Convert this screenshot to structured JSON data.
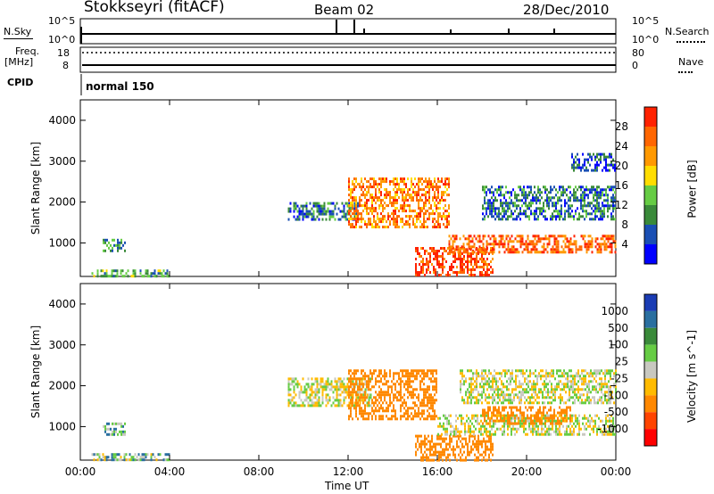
{
  "header": {
    "title": "Stokkseyri (fitACF)",
    "beam": "Beam 02",
    "date": "28/Dec/2010"
  },
  "nsky": {
    "label": "N.Sky",
    "tick_top": "10^5",
    "tick_bottom": "10^0",
    "right_label": "N.Search",
    "right_tick_top": "10^5",
    "right_tick_bottom": "10^0"
  },
  "freq": {
    "label_line1": "Freq.",
    "label_line2": "[MHz]",
    "tick_top": "18",
    "tick_bottom": "8",
    "right_label": "Nave",
    "right_tick_top": "80",
    "right_tick_bottom": "0"
  },
  "cpid": {
    "label": "CPID",
    "value": "normal 150"
  },
  "colors": {
    "power_scale": [
      "#0000ff",
      "#1a4fb4",
      "#3a8a3a",
      "#66cc44",
      "#ffdd00",
      "#ff9900",
      "#ff6600",
      "#ff2200"
    ],
    "velocity_scale": [
      "#1a3cb4",
      "#2a6fa0",
      "#3a8a3a",
      "#66cc44",
      "#c8c8c0",
      "#ffbb00",
      "#ff8800",
      "#ff4400",
      "#ff0000"
    ],
    "ground_scatter": "#c8c8c0"
  },
  "chart_data": [
    {
      "type": "heatmap",
      "title": "",
      "xlabel": "Time UT",
      "ylabel": "Slant Range [km]",
      "colorbar_label": "Power [dB]",
      "colorbar_ticks": [
        "28",
        "24",
        "20",
        "16",
        "12",
        "8",
        "4"
      ],
      "x_ticks": [
        "00:00",
        "04:00",
        "08:00",
        "12:00",
        "16:00",
        "20:00",
        "00:00"
      ],
      "y_ticks": [
        "1000",
        "2000",
        "3000",
        "4000"
      ],
      "ylim": [
        180,
        4500
      ],
      "xlim": [
        0,
        24
      ],
      "regions": [
        {
          "x": [
            0.5,
            4.0
          ],
          "y": [
            200,
            350
          ],
          "value_db": 12
        },
        {
          "x": [
            1.0,
            2.0
          ],
          "y": [
            800,
            1100
          ],
          "value_db": 10
        },
        {
          "x": [
            9.3,
            12.5
          ],
          "y": [
            1600,
            2000
          ],
          "value_db": 8
        },
        {
          "x": [
            12.0,
            16.5
          ],
          "y": [
            1400,
            2600
          ],
          "value_db": 24
        },
        {
          "x": [
            15.0,
            18.5
          ],
          "y": [
            200,
            900
          ],
          "value_db": 28
        },
        {
          "x": [
            16.5,
            24.0
          ],
          "y": [
            800,
            1200
          ],
          "value_db": 26
        },
        {
          "x": [
            18.0,
            24.0
          ],
          "y": [
            1600,
            2400
          ],
          "value_db": 8
        },
        {
          "x": [
            22.0,
            24.0
          ],
          "y": [
            2800,
            3200
          ],
          "value_db": 6
        }
      ]
    },
    {
      "type": "heatmap",
      "title": "",
      "xlabel": "Time UT",
      "ylabel": "Slant Range [km]",
      "colorbar_label": "Velocity [m s^-1]",
      "colorbar_ticks": [
        "1000",
        "500",
        "100",
        "25",
        "-25",
        "-100",
        "-500",
        "-1000"
      ],
      "x_ticks": [
        "00:00",
        "04:00",
        "08:00",
        "12:00",
        "16:00",
        "20:00",
        "00:00"
      ],
      "y_ticks": [
        "1000",
        "2000",
        "3000",
        "4000"
      ],
      "ylim": [
        180,
        4500
      ],
      "xlim": [
        0,
        24
      ],
      "regions": [
        {
          "x": [
            0.5,
            4.0
          ],
          "y": [
            200,
            350
          ],
          "value_ms": 60
        },
        {
          "x": [
            1.0,
            2.0
          ],
          "y": [
            800,
            1100
          ],
          "value_ms": 80
        },
        {
          "x": [
            9.3,
            13.0
          ],
          "y": [
            1500,
            2200
          ],
          "value_ms": 0
        },
        {
          "x": [
            12.0,
            16.0
          ],
          "y": [
            1200,
            2400
          ],
          "value_ms": -200
        },
        {
          "x": [
            15.0,
            18.5
          ],
          "y": [
            200,
            800
          ],
          "value_ms": -300
        },
        {
          "x": [
            16.0,
            24.0
          ],
          "y": [
            800,
            1300
          ],
          "value_ms": 0
        },
        {
          "x": [
            17.0,
            24.0
          ],
          "y": [
            1600,
            2400
          ],
          "value_ms": 0
        },
        {
          "x": [
            18.0,
            22.0
          ],
          "y": [
            1100,
            1500
          ],
          "value_ms": -300
        }
      ]
    }
  ]
}
